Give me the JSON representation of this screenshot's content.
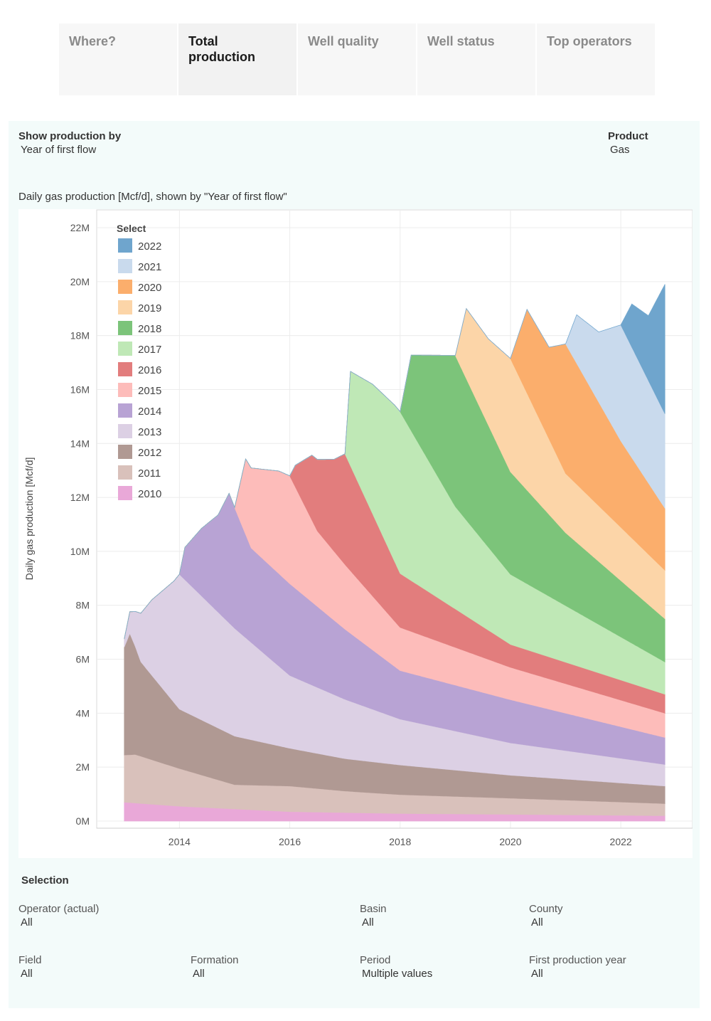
{
  "tabs": [
    {
      "label": "Where?"
    },
    {
      "label": "Total production"
    },
    {
      "label": "Well quality"
    },
    {
      "label": "Well status"
    },
    {
      "label": "Top operators"
    }
  ],
  "controls": {
    "show_by_label": "Show production by",
    "show_by_value": "Year of first flow",
    "product_label": "Product",
    "product_value": "Gas"
  },
  "chart_heading": "Daily gas production [Mcf/d], shown by \"Year of first flow\"",
  "chart_data": {
    "type": "area",
    "stacked": true,
    "ylabel": "Daily gas production [Mcf/d]",
    "y_ticks": [
      "0M",
      "2M",
      "4M",
      "6M",
      "8M",
      "10M",
      "12M",
      "14M",
      "16M",
      "18M",
      "20M",
      "22M"
    ],
    "x_ticks": [
      "2014",
      "2016",
      "2018",
      "2020",
      "2022"
    ],
    "ylim": [
      0,
      22000000
    ],
    "xlim": [
      2012.5,
      2023.3
    ],
    "grid": true,
    "legend": {
      "title": "Select",
      "placement": "top-left"
    },
    "series": [
      {
        "name": "2010",
        "color": "#e9a8d8",
        "start": 2013.0,
        "points": [
          [
            2013.0,
            0.7
          ],
          [
            2014.0,
            0.55
          ],
          [
            2016.0,
            0.35
          ],
          [
            2018.0,
            0.28
          ],
          [
            2020.0,
            0.25
          ],
          [
            2022.8,
            0.2
          ]
        ]
      },
      {
        "name": "2011",
        "color": "#d9c1bb",
        "start": 2013.0,
        "points": [
          [
            2013.0,
            1.75
          ],
          [
            2013.2,
            1.8
          ],
          [
            2014.0,
            1.4
          ],
          [
            2015.0,
            0.9
          ],
          [
            2016.0,
            0.95
          ],
          [
            2017.0,
            0.8
          ],
          [
            2018.0,
            0.7
          ],
          [
            2020.0,
            0.6
          ],
          [
            2022.8,
            0.45
          ]
        ]
      },
      {
        "name": "2012",
        "color": "#b09993",
        "start": 2013.0,
        "points": [
          [
            2013.0,
            4.0
          ],
          [
            2013.1,
            4.5
          ],
          [
            2013.3,
            3.5
          ],
          [
            2014.0,
            2.2
          ],
          [
            2015.0,
            1.8
          ],
          [
            2016.0,
            1.4
          ],
          [
            2017.0,
            1.2
          ],
          [
            2018.0,
            1.1
          ],
          [
            2020.0,
            0.85
          ],
          [
            2022.8,
            0.65
          ]
        ]
      },
      {
        "name": "2013",
        "color": "#dcd0e4",
        "start": 2013.0,
        "points": [
          [
            2013.0,
            0.3
          ],
          [
            2013.1,
            0.8
          ],
          [
            2013.5,
            2.8
          ],
          [
            2013.9,
            4.5
          ],
          [
            2014.0,
            5.0
          ],
          [
            2015.0,
            4.0
          ],
          [
            2016.0,
            2.7
          ],
          [
            2017.0,
            2.2
          ],
          [
            2018.0,
            1.7
          ],
          [
            2020.0,
            1.2
          ],
          [
            2022.8,
            0.8
          ]
        ]
      },
      {
        "name": "2014",
        "color": "#b8a3d4",
        "start": 2014.0,
        "points": [
          [
            2014.0,
            0.0
          ],
          [
            2014.1,
            1.2
          ],
          [
            2014.4,
            2.5
          ],
          [
            2014.7,
            3.6
          ],
          [
            2014.9,
            4.8
          ],
          [
            2015.3,
            3.5
          ],
          [
            2016.0,
            3.4
          ],
          [
            2017.0,
            2.6
          ],
          [
            2018.0,
            1.8
          ],
          [
            2020.0,
            1.6
          ],
          [
            2022.8,
            1.0
          ]
        ]
      },
      {
        "name": "2015",
        "color": "#fdbcba",
        "start": 2015.0,
        "points": [
          [
            2015.0,
            0.0
          ],
          [
            2015.2,
            2.8
          ],
          [
            2015.8,
            3.8
          ],
          [
            2016.0,
            4.0
          ],
          [
            2016.5,
            2.8
          ],
          [
            2017.0,
            2.4
          ],
          [
            2018.0,
            1.6
          ],
          [
            2020.0,
            1.2
          ],
          [
            2022.8,
            0.9
          ]
        ]
      },
      {
        "name": "2016",
        "color": "#e27d7d",
        "start": 2016.0,
        "points": [
          [
            2016.0,
            0.0
          ],
          [
            2016.1,
            0.8
          ],
          [
            2016.4,
            2.4
          ],
          [
            2016.8,
            3.4
          ],
          [
            2017.0,
            4.1
          ],
          [
            2018.0,
            2.0
          ],
          [
            2020.0,
            0.85
          ],
          [
            2022.8,
            0.7
          ]
        ]
      },
      {
        "name": "2017",
        "color": "#bfe8b6",
        "start": 2017.0,
        "points": [
          [
            2017.0,
            0.0
          ],
          [
            2017.1,
            3.5
          ],
          [
            2017.5,
            4.8
          ],
          [
            2017.9,
            5.8
          ],
          [
            2018.0,
            6.0
          ],
          [
            2019.0,
            3.8
          ],
          [
            2020.0,
            2.6
          ],
          [
            2022.8,
            1.2
          ]
        ]
      },
      {
        "name": "2018",
        "color": "#7cc47a",
        "start": 2018.0,
        "points": [
          [
            2018.0,
            0.0
          ],
          [
            2018.2,
            2.8
          ],
          [
            2018.6,
            4.2
          ],
          [
            2019.0,
            5.6
          ],
          [
            2020.0,
            3.8
          ],
          [
            2021.0,
            2.7
          ],
          [
            2022.8,
            1.6
          ]
        ]
      },
      {
        "name": "2019",
        "color": "#fcd5a8",
        "start": 2019.0,
        "points": [
          [
            2019.0,
            0.0
          ],
          [
            2019.2,
            2.6
          ],
          [
            2019.6,
            3.2
          ],
          [
            2020.0,
            4.2
          ],
          [
            2021.0,
            2.2
          ],
          [
            2022.8,
            1.8
          ]
        ]
      },
      {
        "name": "2020",
        "color": "#fbae6c",
        "start": 2020.0,
        "points": [
          [
            2020.0,
            0.0
          ],
          [
            2020.3,
            3.1
          ],
          [
            2020.7,
            3.4
          ],
          [
            2021.0,
            4.8
          ],
          [
            2022.0,
            3.2
          ],
          [
            2022.8,
            2.3
          ]
        ]
      },
      {
        "name": "2021",
        "color": "#c9daed",
        "start": 2021.0,
        "points": [
          [
            2021.0,
            0.0
          ],
          [
            2021.2,
            1.8
          ],
          [
            2021.6,
            2.6
          ],
          [
            2022.0,
            4.3
          ],
          [
            2022.8,
            3.5
          ]
        ]
      },
      {
        "name": "2022",
        "color": "#6fa5cd",
        "start": 2022.0,
        "points": [
          [
            2022.0,
            0.0
          ],
          [
            2022.2,
            1.6
          ],
          [
            2022.5,
            2.4
          ],
          [
            2022.8,
            4.8
          ]
        ]
      }
    ]
  },
  "selection": {
    "title": "Selection",
    "filters": [
      {
        "label": "Operator (actual)",
        "value": "All"
      },
      {
        "label": "Basin",
        "value": "All"
      },
      {
        "label": "County",
        "value": "All"
      },
      {
        "label": "Field",
        "value": "All"
      },
      {
        "label": "Formation",
        "value": "All"
      },
      {
        "label": "Period",
        "value": "Multiple values"
      },
      {
        "label": "First production year",
        "value": "All"
      }
    ]
  }
}
